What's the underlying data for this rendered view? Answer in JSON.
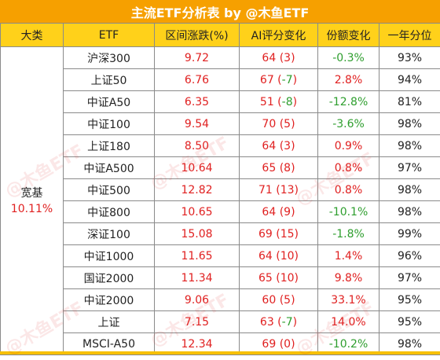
{
  "title": "主流ETF分析表 by @木鱼ETF",
  "headers": [
    "大类",
    "ETF",
    "区间涨跌(%)",
    "AI评分变化",
    "份额变化",
    "一年分位"
  ],
  "category": {
    "label": "宽基",
    "value": "10.11%"
  },
  "watermark": "@木鱼ETF",
  "rows": [
    {
      "name": "沪深300",
      "change": "9.72",
      "score": "64",
      "delta": "3",
      "share": "-0.3%",
      "pct": "93%"
    },
    {
      "name": "上证50",
      "change": "6.76",
      "score": "67",
      "delta": "-7",
      "share": "2.8%",
      "pct": "94%"
    },
    {
      "name": "中证A50",
      "change": "6.35",
      "score": "51",
      "delta": "-8",
      "share": "-12.8%",
      "pct": "81%"
    },
    {
      "name": "中证100",
      "change": "9.54",
      "score": "70",
      "delta": "5",
      "share": "-3.6%",
      "pct": "98%"
    },
    {
      "name": "上证180",
      "change": "8.50",
      "score": "64",
      "delta": "3",
      "share": "0.9%",
      "pct": "98%"
    },
    {
      "name": "中证A500",
      "change": "10.64",
      "score": "65",
      "delta": "8",
      "share": "0.8%",
      "pct": "97%"
    },
    {
      "name": "中证500",
      "change": "12.82",
      "score": "71",
      "delta": "13",
      "share": "0.8%",
      "pct": "98%"
    },
    {
      "name": "中证800",
      "change": "10.65",
      "score": "64",
      "delta": "9",
      "share": "-10.1%",
      "pct": "98%"
    },
    {
      "name": "深证100",
      "change": "15.08",
      "score": "69",
      "delta": "15",
      "share": "-1.8%",
      "pct": "99%"
    },
    {
      "name": "中证1000",
      "change": "11.65",
      "score": "64",
      "delta": "10",
      "share": "1.4%",
      "pct": "96%"
    },
    {
      "name": "国证2000",
      "change": "11.34",
      "score": "65",
      "delta": "10",
      "share": "9.8%",
      "pct": "97%"
    },
    {
      "name": "中证2000",
      "change": "9.06",
      "score": "60",
      "delta": "5",
      "share": "33.1%",
      "pct": "95%"
    },
    {
      "name": "上证",
      "change": "7.15",
      "score": "63",
      "delta": "-7",
      "share": "14.0%",
      "pct": "95%"
    },
    {
      "name": "MSCI-A50",
      "change": "12.34",
      "score": "69",
      "delta": "0",
      "share": "-10.2%",
      "pct": "98%"
    }
  ]
}
